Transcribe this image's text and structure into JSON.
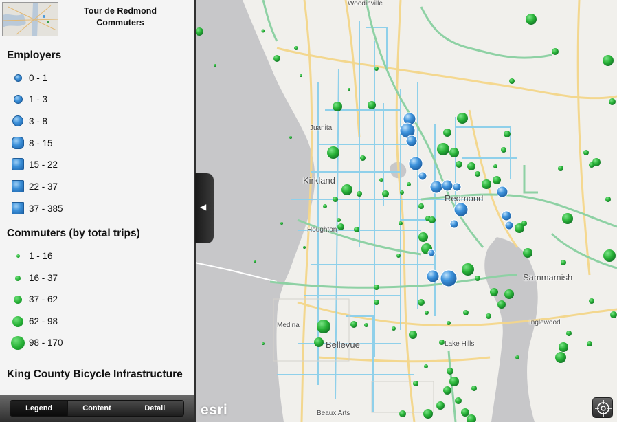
{
  "app": {
    "title_line1": "Tour de Redmond",
    "title_line2": "Commuters"
  },
  "legend": {
    "employers": {
      "heading": "Employers",
      "classes": [
        {
          "label": "0 - 1",
          "shape": "circle"
        },
        {
          "label": "1 - 3",
          "shape": "circle"
        },
        {
          "label": "3 - 8",
          "shape": "circle"
        },
        {
          "label": "8 - 15",
          "shape": "rounded-square"
        },
        {
          "label": "15 - 22",
          "shape": "square"
        },
        {
          "label": "22 - 37",
          "shape": "square"
        },
        {
          "label": "37 - 385",
          "shape": "square"
        }
      ]
    },
    "commuters": {
      "heading": "Commuters (by total trips)",
      "classes": [
        {
          "label": "1 - 16"
        },
        {
          "label": "16 - 37"
        },
        {
          "label": "37 - 62"
        },
        {
          "label": "62 - 98"
        },
        {
          "label": "98 - 170"
        }
      ]
    },
    "infrastructure": {
      "heading": "King County Bicycle Infrastructure"
    }
  },
  "tabs": [
    "Legend",
    "Content",
    "Detail"
  ],
  "map": {
    "places": [
      "Woodinville",
      "Juanita",
      "Kirkland",
      "Redmond",
      "Houghton",
      "Sammamish",
      "Inglewood",
      "Medina",
      "Bellevue",
      "Lake Hills",
      "Beaux Arts"
    ],
    "attribution": "esri",
    "colors": {
      "water": "#c7c7c9",
      "land": "#f1f0ec",
      "bike_route": "#8fd0ea",
      "bike_trail": "#8ed1a4",
      "major_road": "#f4d68a",
      "employer_symbol": "#3b8fd8",
      "commuter_symbol": "#26b035"
    }
  },
  "icons": {
    "collapse": "triangle-left-icon",
    "locate": "crosshair-locate-icon"
  }
}
